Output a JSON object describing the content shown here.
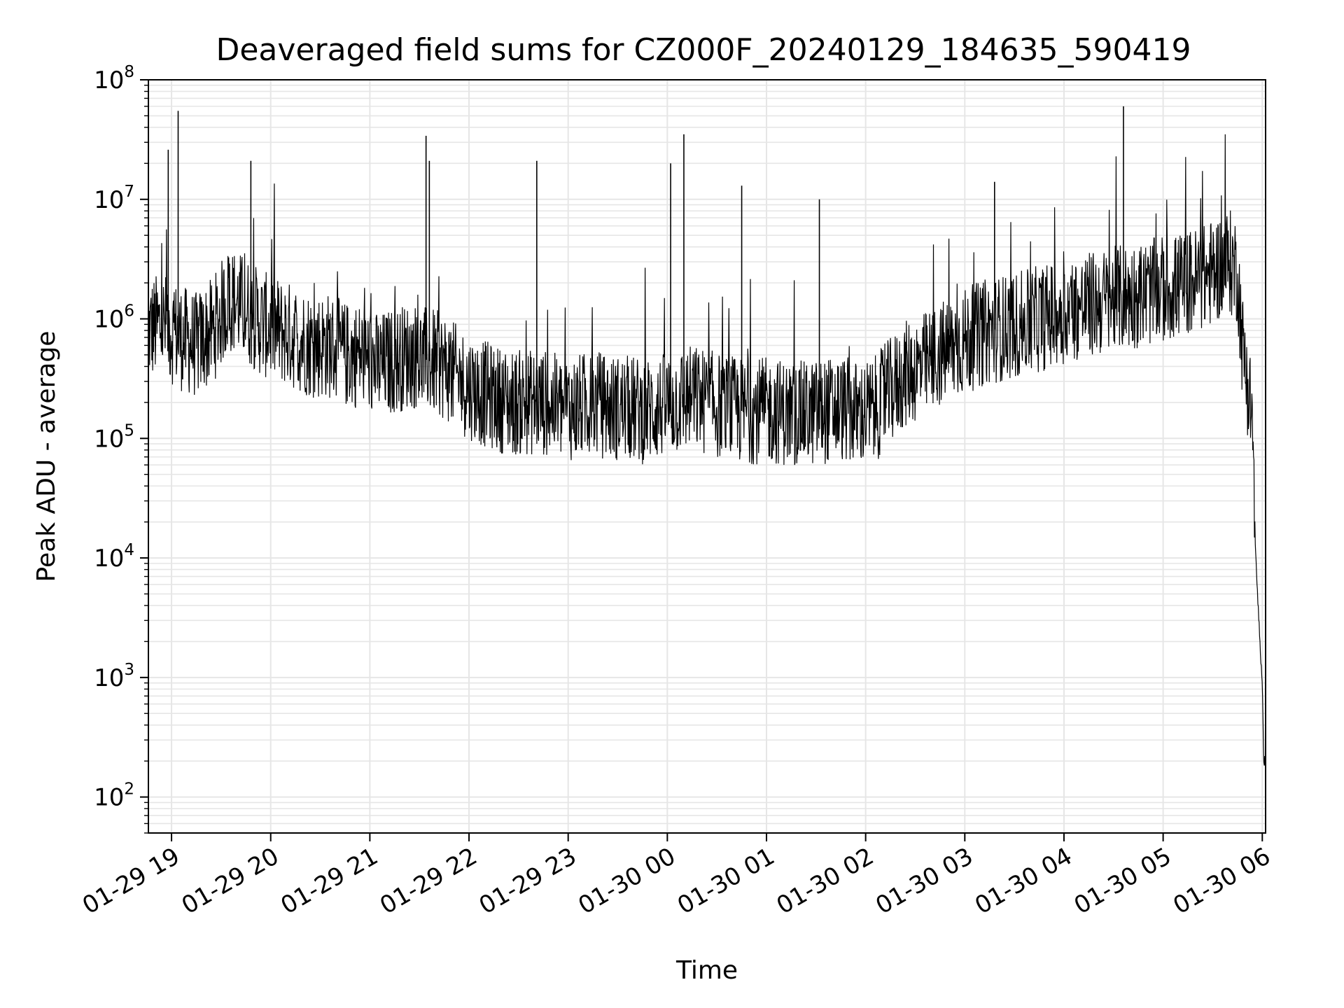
{
  "chart_data": {
    "type": "line",
    "title": "Deaveraged field sums for CZ000F_20240129_184635_590419",
    "xlabel": "Time",
    "ylabel": "Peak ADU - average",
    "yscale": "log",
    "ylim": [
      50,
      100000000
    ],
    "xlim": [
      "2024-01-29 18:46",
      "2024-01-30 06:02"
    ],
    "grid": true,
    "grid_minor": true,
    "line_color": "#000000",
    "x_ticks": [
      {
        "label": "01-29 19",
        "time": "2024-01-29 19:00"
      },
      {
        "label": "01-29 20",
        "time": "2024-01-29 20:00"
      },
      {
        "label": "01-29 21",
        "time": "2024-01-29 21:00"
      },
      {
        "label": "01-29 22",
        "time": "2024-01-29 22:00"
      },
      {
        "label": "01-29 23",
        "time": "2024-01-29 23:00"
      },
      {
        "label": "01-30 00",
        "time": "2024-01-30 00:00"
      },
      {
        "label": "01-30 01",
        "time": "2024-01-30 01:00"
      },
      {
        "label": "01-30 02",
        "time": "2024-01-30 02:00"
      },
      {
        "label": "01-30 03",
        "time": "2024-01-30 03:00"
      },
      {
        "label": "01-30 04",
        "time": "2024-01-30 04:00"
      },
      {
        "label": "01-30 05",
        "time": "2024-01-30 05:00"
      },
      {
        "label": "01-30 06",
        "time": "2024-01-30 06:00"
      }
    ],
    "y_ticks": [
      {
        "base": "10",
        "exp": "2",
        "value": 100
      },
      {
        "base": "10",
        "exp": "3",
        "value": 1000
      },
      {
        "base": "10",
        "exp": "4",
        "value": 10000
      },
      {
        "base": "10",
        "exp": "5",
        "value": 100000
      },
      {
        "base": "10",
        "exp": "6",
        "value": 1000000
      },
      {
        "base": "10",
        "exp": "7",
        "value": 10000000
      },
      {
        "base": "10",
        "exp": "8",
        "value": 100000000
      }
    ],
    "series": [
      {
        "x": [
          "2024-01-29 18:46",
          "2024-01-29 18:55",
          "2024-01-29 19:05",
          "2024-01-29 19:15",
          "2024-01-29 19:25",
          "2024-01-29 19:35",
          "2024-01-29 19:45",
          "2024-01-29 19:55",
          "2024-01-29 20:05",
          "2024-01-29 20:15",
          "2024-01-29 20:25",
          "2024-01-29 20:35",
          "2024-01-29 20:45",
          "2024-01-29 20:55",
          "2024-01-29 21:05",
          "2024-01-29 21:15",
          "2024-01-29 21:25",
          "2024-01-29 21:35",
          "2024-01-29 21:45",
          "2024-01-29 21:55",
          "2024-01-29 22:05",
          "2024-01-29 22:15",
          "2024-01-29 22:25",
          "2024-01-29 22:35",
          "2024-01-29 22:45",
          "2024-01-29 22:55",
          "2024-01-29 23:05",
          "2024-01-29 23:15",
          "2024-01-29 23:25",
          "2024-01-29 23:35",
          "2024-01-29 23:45",
          "2024-01-29 23:55",
          "2024-01-30 00:05",
          "2024-01-30 00:15",
          "2024-01-30 00:25",
          "2024-01-30 00:35",
          "2024-01-30 00:45",
          "2024-01-30 00:55",
          "2024-01-30 01:05",
          "2024-01-30 01:15",
          "2024-01-30 01:25",
          "2024-01-30 01:35",
          "2024-01-30 01:45",
          "2024-01-30 01:55",
          "2024-01-30 02:05",
          "2024-01-30 02:15",
          "2024-01-30 02:25",
          "2024-01-30 02:35",
          "2024-01-30 02:45",
          "2024-01-30 02:55",
          "2024-01-30 03:05",
          "2024-01-30 03:15",
          "2024-01-30 03:25",
          "2024-01-30 03:35",
          "2024-01-30 03:45",
          "2024-01-30 03:55",
          "2024-01-30 04:05",
          "2024-01-30 04:15",
          "2024-01-30 04:25",
          "2024-01-30 04:35",
          "2024-01-30 04:45",
          "2024-01-30 04:55",
          "2024-01-30 05:05",
          "2024-01-30 05:15",
          "2024-01-30 05:25",
          "2024-01-30 05:35",
          "2024-01-30 05:40",
          "2024-01-30 05:45",
          "2024-01-30 05:48",
          "2024-01-30 05:51",
          "2024-01-30 05:54",
          "2024-01-30 05:56",
          "2024-01-30 05:58",
          "2024-01-30 06:00",
          "2024-01-30 06:01"
        ],
        "y": [
          800000,
          900000,
          700000,
          600000,
          800000,
          1500000,
          1200000,
          900000,
          800000,
          700000,
          600000,
          600000,
          500000,
          500000,
          400000,
          450000,
          500000,
          450000,
          400000,
          300000,
          250000,
          220000,
          200000,
          200000,
          200000,
          180000,
          180000,
          200000,
          180000,
          180000,
          170000,
          180000,
          200000,
          220000,
          200000,
          180000,
          170000,
          170000,
          170000,
          160000,
          160000,
          170000,
          180000,
          160000,
          170000,
          250000,
          350000,
          400000,
          500000,
          600000,
          700000,
          800000,
          850000,
          900000,
          1000000,
          1100000,
          1200000,
          1300000,
          1400000,
          1500000,
          1600000,
          1700000,
          1800000,
          2000000,
          2200000,
          2800000,
          3000000,
          2500000,
          600000,
          300000,
          150000,
          10000,
          3000,
          800,
          200
        ]
      }
    ],
    "spikes": [
      {
        "x": "2024-01-29 19:04",
        "y": 55000000
      },
      {
        "x": "2024-01-29 18:58",
        "y": 26000000
      },
      {
        "x": "2024-01-29 19:48",
        "y": 21000000
      },
      {
        "x": "2024-01-29 21:34",
        "y": 34000000
      },
      {
        "x": "2024-01-29 21:36",
        "y": 21000000
      },
      {
        "x": "2024-01-29 22:41",
        "y": 21000000
      },
      {
        "x": "2024-01-30 00:02",
        "y": 20000000
      },
      {
        "x": "2024-01-30 00:10",
        "y": 35000000
      },
      {
        "x": "2024-01-30 00:45",
        "y": 13000000
      },
      {
        "x": "2024-01-30 01:32",
        "y": 10000000
      },
      {
        "x": "2024-01-30 03:18",
        "y": 14000000
      },
      {
        "x": "2024-01-30 04:36",
        "y": 60000000
      }
    ]
  }
}
